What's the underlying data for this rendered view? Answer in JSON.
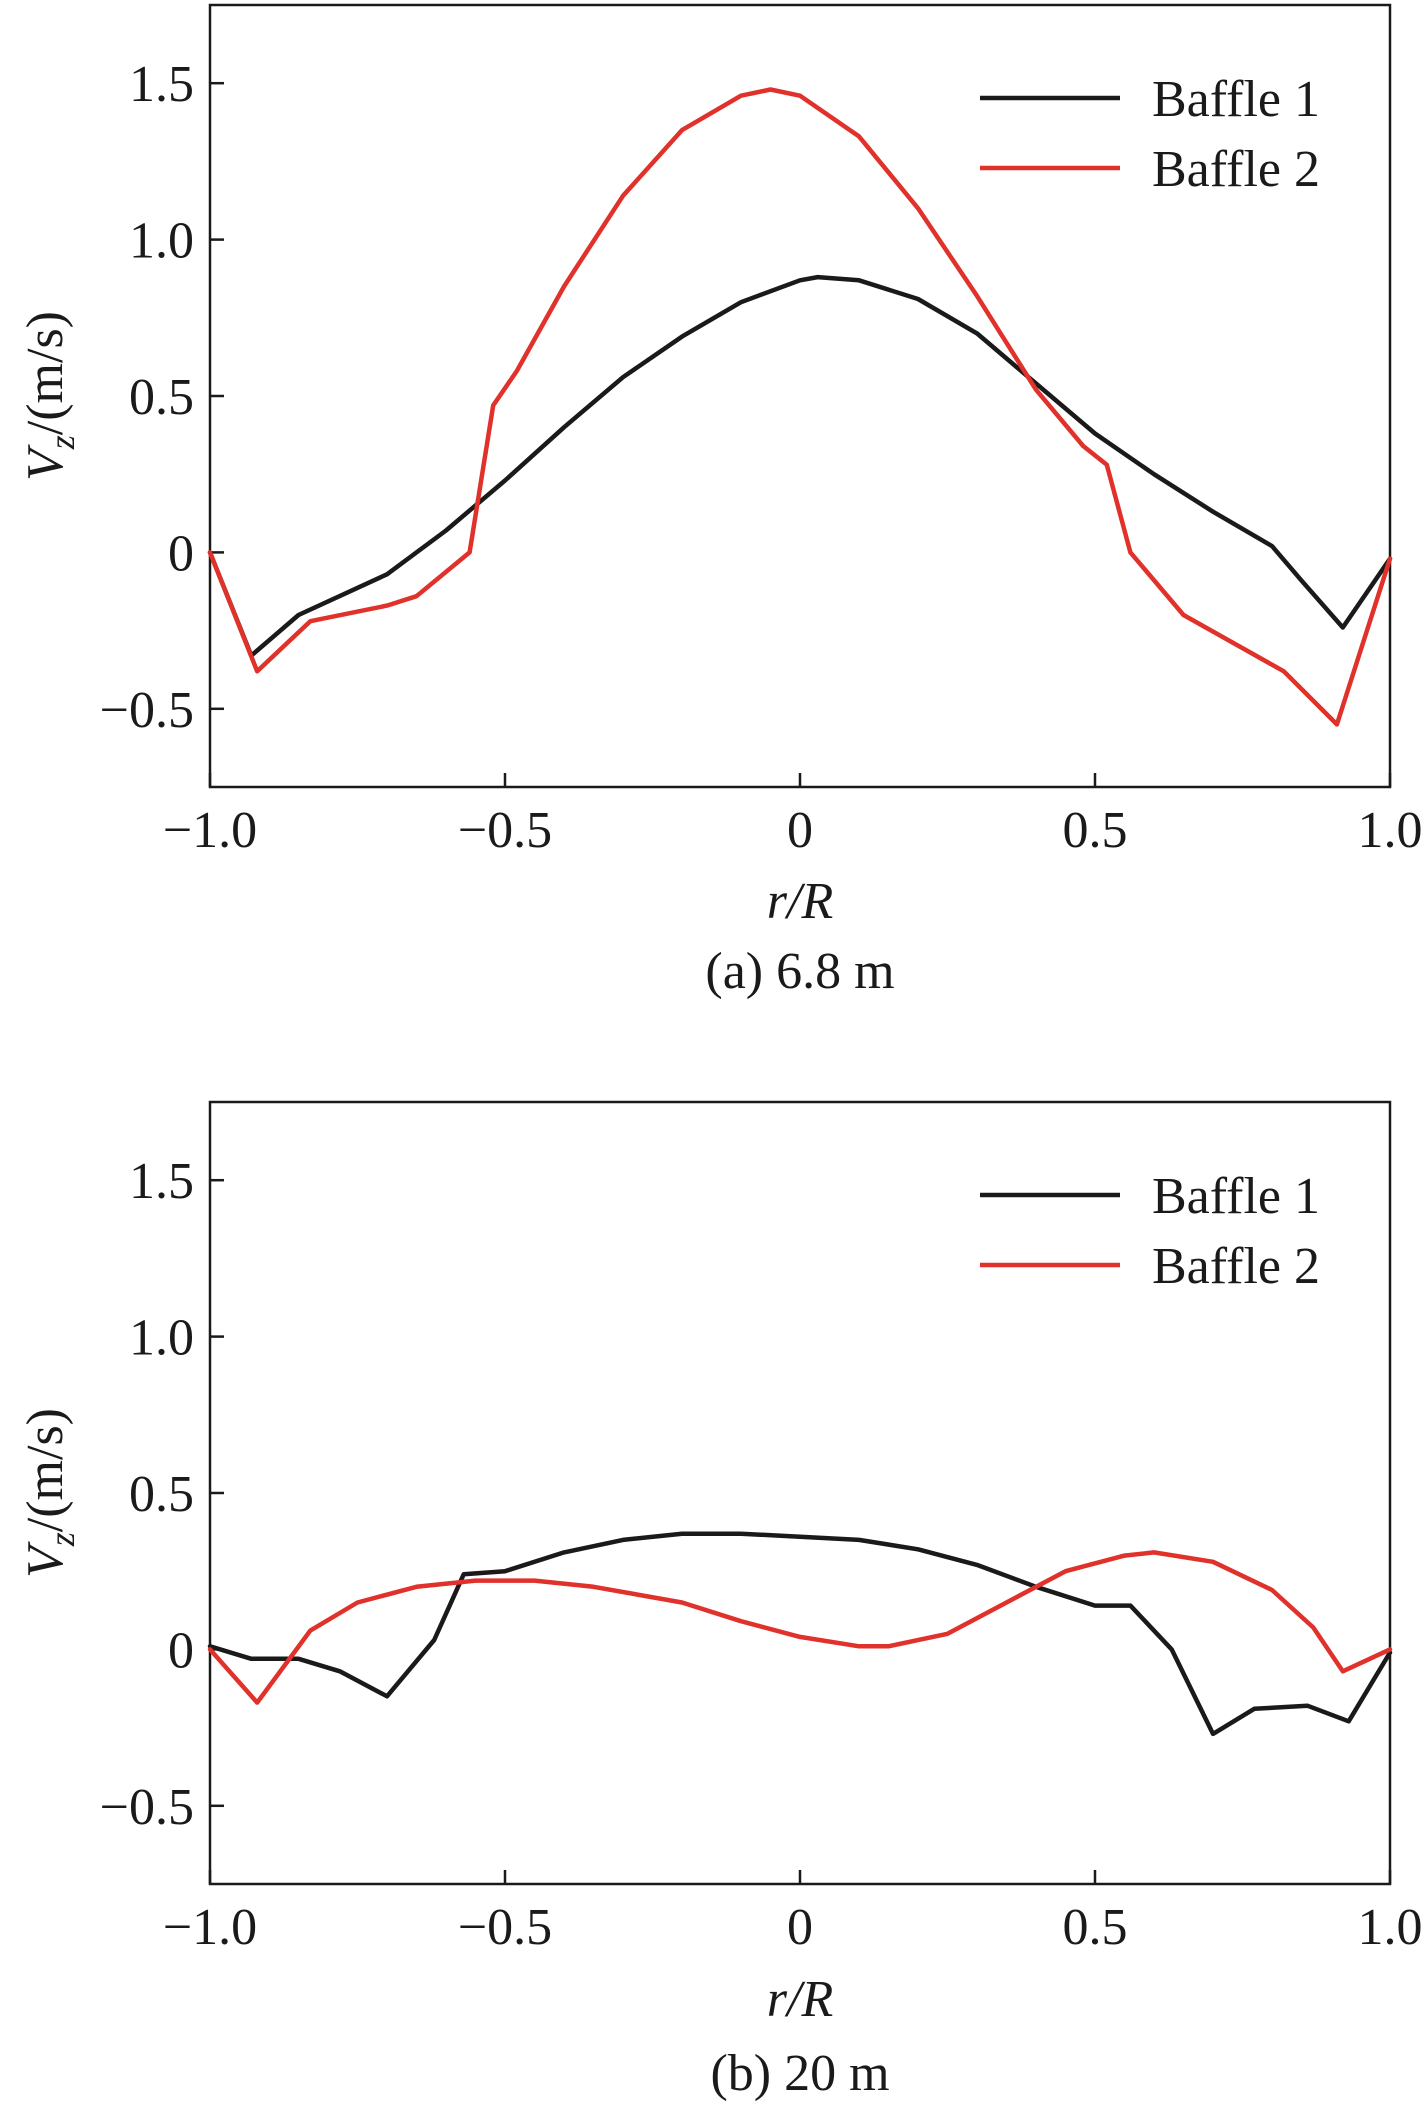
{
  "colors": {
    "baffle1": "#1a1a1a",
    "baffle2": "#e0312b"
  },
  "chart_data": [
    {
      "type": "line",
      "caption": "(a) 6.8 m",
      "xlabel_italic": "r/R",
      "ylabel_v": "V",
      "ylabel_sub": "z",
      "ylabel_unit": "/(m/s)",
      "xlim": [
        -1.0,
        1.0
      ],
      "ylim": [
        -0.75,
        1.75
      ],
      "xticks": [
        -1.0,
        -0.5,
        0,
        0.5,
        1.0
      ],
      "xtick_labels": [
        "−1.0",
        "−0.5",
        "0",
        "0.5",
        "1.0"
      ],
      "yticks": [
        -0.5,
        0,
        0.5,
        1.0,
        1.5
      ],
      "ytick_labels": [
        "−0.5",
        "0",
        "0.5",
        "1.0",
        "1.5"
      ],
      "legend_position": "top-right",
      "grid": false,
      "series": [
        {
          "name": "Baffle 1",
          "color": "#1a1a1a",
          "points": [
            [
              -1.0,
              0.0
            ],
            [
              -0.93,
              -0.33
            ],
            [
              -0.85,
              -0.2
            ],
            [
              -0.7,
              -0.07
            ],
            [
              -0.6,
              0.07
            ],
            [
              -0.5,
              0.23
            ],
            [
              -0.4,
              0.4
            ],
            [
              -0.3,
              0.56
            ],
            [
              -0.2,
              0.69
            ],
            [
              -0.1,
              0.8
            ],
            [
              0.0,
              0.87
            ],
            [
              0.03,
              0.88
            ],
            [
              0.1,
              0.87
            ],
            [
              0.2,
              0.81
            ],
            [
              0.3,
              0.7
            ],
            [
              0.4,
              0.54
            ],
            [
              0.5,
              0.38
            ],
            [
              0.6,
              0.25
            ],
            [
              0.7,
              0.13
            ],
            [
              0.8,
              0.02
            ],
            [
              0.85,
              -0.09
            ],
            [
              0.92,
              -0.24
            ],
            [
              1.0,
              -0.02
            ]
          ]
        },
        {
          "name": "Baffle 2",
          "color": "#e0312b",
          "points": [
            [
              -1.0,
              0.0
            ],
            [
              -0.92,
              -0.38
            ],
            [
              -0.83,
              -0.22
            ],
            [
              -0.7,
              -0.17
            ],
            [
              -0.65,
              -0.14
            ],
            [
              -0.56,
              0.0
            ],
            [
              -0.52,
              0.47
            ],
            [
              -0.48,
              0.58
            ],
            [
              -0.4,
              0.85
            ],
            [
              -0.3,
              1.14
            ],
            [
              -0.2,
              1.35
            ],
            [
              -0.1,
              1.46
            ],
            [
              -0.05,
              1.48
            ],
            [
              0.0,
              1.46
            ],
            [
              0.1,
              1.33
            ],
            [
              0.2,
              1.1
            ],
            [
              0.3,
              0.82
            ],
            [
              0.4,
              0.52
            ],
            [
              0.48,
              0.34
            ],
            [
              0.52,
              0.28
            ],
            [
              0.56,
              0.0
            ],
            [
              0.65,
              -0.2
            ],
            [
              0.82,
              -0.38
            ],
            [
              0.91,
              -0.55
            ],
            [
              1.0,
              -0.02
            ]
          ]
        }
      ]
    },
    {
      "type": "line",
      "caption": "(b) 20 m",
      "xlabel_italic": "r/R",
      "ylabel_v": "V",
      "ylabel_sub": "z",
      "ylabel_unit": "/(m/s)",
      "xlim": [
        -1.0,
        1.0
      ],
      "ylim": [
        -0.75,
        1.75
      ],
      "xticks": [
        -1.0,
        -0.5,
        0,
        0.5,
        1.0
      ],
      "xtick_labels": [
        "−1.0",
        "−0.5",
        "0",
        "0.5",
        "1.0"
      ],
      "yticks": [
        -0.5,
        0,
        0.5,
        1.0,
        1.5
      ],
      "ytick_labels": [
        "−0.5",
        "0",
        "0.5",
        "1.0",
        "1.5"
      ],
      "legend_position": "top-right",
      "grid": false,
      "series": [
        {
          "name": "Baffle 1",
          "color": "#1a1a1a",
          "points": [
            [
              -1.0,
              0.01
            ],
            [
              -0.93,
              -0.03
            ],
            [
              -0.85,
              -0.03
            ],
            [
              -0.78,
              -0.07
            ],
            [
              -0.7,
              -0.15
            ],
            [
              -0.62,
              0.03
            ],
            [
              -0.57,
              0.24
            ],
            [
              -0.5,
              0.25
            ],
            [
              -0.4,
              0.31
            ],
            [
              -0.3,
              0.35
            ],
            [
              -0.2,
              0.37
            ],
            [
              -0.1,
              0.37
            ],
            [
              0.0,
              0.36
            ],
            [
              0.1,
              0.35
            ],
            [
              0.2,
              0.32
            ],
            [
              0.3,
              0.27
            ],
            [
              0.4,
              0.2
            ],
            [
              0.5,
              0.14
            ],
            [
              0.56,
              0.14
            ],
            [
              0.63,
              0.0
            ],
            [
              0.7,
              -0.27
            ],
            [
              0.77,
              -0.19
            ],
            [
              0.86,
              -0.18
            ],
            [
              0.93,
              -0.23
            ],
            [
              1.0,
              -0.01
            ]
          ]
        },
        {
          "name": "Baffle 2",
          "color": "#e0312b",
          "points": [
            [
              -1.0,
              0.0
            ],
            [
              -0.92,
              -0.17
            ],
            [
              -0.83,
              0.06
            ],
            [
              -0.75,
              0.15
            ],
            [
              -0.65,
              0.2
            ],
            [
              -0.55,
              0.22
            ],
            [
              -0.45,
              0.22
            ],
            [
              -0.35,
              0.2
            ],
            [
              -0.2,
              0.15
            ],
            [
              -0.1,
              0.09
            ],
            [
              0.0,
              0.04
            ],
            [
              0.1,
              0.01
            ],
            [
              0.15,
              0.01
            ],
            [
              0.25,
              0.05
            ],
            [
              0.35,
              0.15
            ],
            [
              0.45,
              0.25
            ],
            [
              0.55,
              0.3
            ],
            [
              0.6,
              0.31
            ],
            [
              0.7,
              0.28
            ],
            [
              0.8,
              0.19
            ],
            [
              0.87,
              0.07
            ],
            [
              0.92,
              -0.07
            ],
            [
              1.0,
              0.0
            ]
          ]
        }
      ]
    }
  ]
}
